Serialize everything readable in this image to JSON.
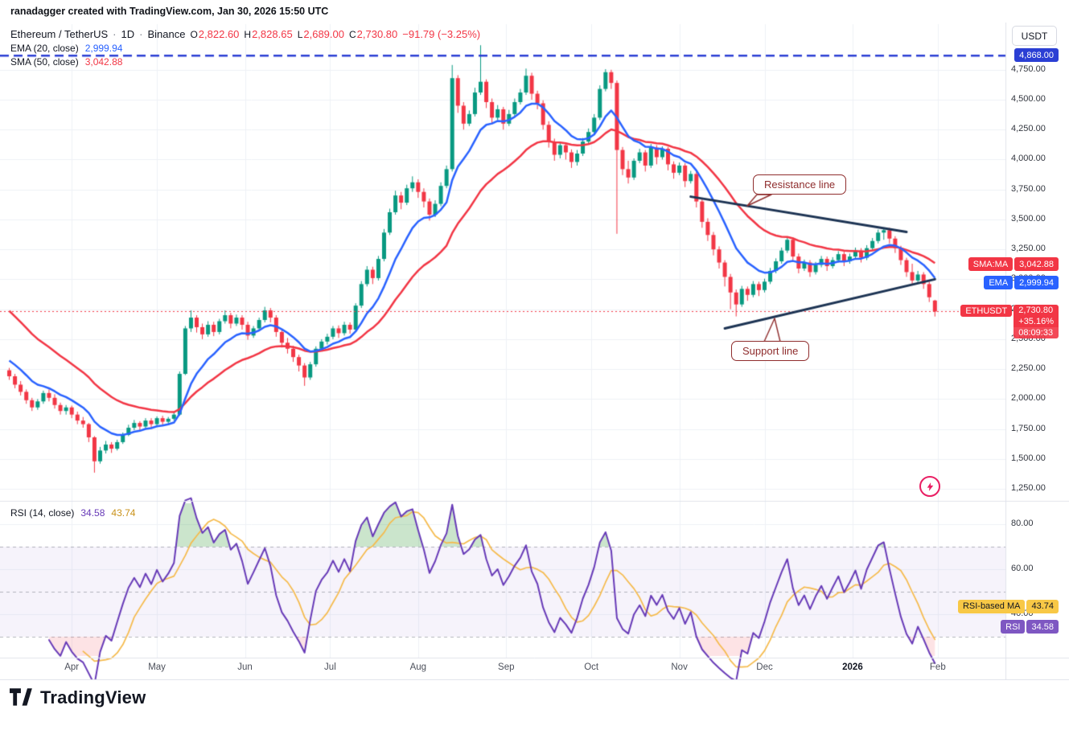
{
  "attribution": "ranadagger created with TradingView.com, Jan 30, 2026 15:50 UTC",
  "header": {
    "symbol": "Ethereum / TetherUS",
    "sep1": "·",
    "interval": "1D",
    "sep2": "·",
    "exchange": "Binance",
    "o_label": "O",
    "o": "2,822.60",
    "h_label": "H",
    "h": "2,828.65",
    "l_label": "L",
    "l": "2,689.00",
    "c_label": "C",
    "c": "2,730.80",
    "change": "−91.79 (−3.25%)"
  },
  "indicators": {
    "ema": {
      "label": "EMA (20, close)",
      "value": "2,999.94",
      "color": "#2962ff"
    },
    "sma": {
      "label": "SMA (50, close)",
      "value": "3,042.88",
      "color": "#f23645"
    }
  },
  "axis_button": {
    "label": "USDT"
  },
  "price_axis": {
    "ticks": [
      {
        "label": "4,750.00",
        "value": 4750
      },
      {
        "label": "4,500.00",
        "value": 4500
      },
      {
        "label": "4,250.00",
        "value": 4250
      },
      {
        "label": "4,000.00",
        "value": 4000
      },
      {
        "label": "3,750.00",
        "value": 3750
      },
      {
        "label": "3,500.00",
        "value": 3500
      },
      {
        "label": "3,250.00",
        "value": 3250
      },
      {
        "label": "3,000.00",
        "value": 3000
      },
      {
        "label": "2,750.00",
        "value": 2750
      },
      {
        "label": "2,500.00",
        "value": 2500
      },
      {
        "label": "2,250.00",
        "value": 2250
      },
      {
        "label": "2,000.00",
        "value": 2000
      },
      {
        "label": "1,750.00",
        "value": 1750
      },
      {
        "label": "1,500.00",
        "value": 1500
      },
      {
        "label": "1,250.00",
        "value": 1250
      }
    ]
  },
  "time_axis": {
    "ticks": [
      {
        "label": "Apr",
        "index": 11
      },
      {
        "label": "May",
        "index": 26
      },
      {
        "label": "Jun",
        "index": 41.5
      },
      {
        "label": "Jul",
        "index": 56.5
      },
      {
        "label": "Aug",
        "index": 72
      },
      {
        "label": "Sep",
        "index": 87.5
      },
      {
        "label": "Oct",
        "index": 102.5
      },
      {
        "label": "Nov",
        "index": 118
      },
      {
        "label": "Dec",
        "index": 133
      },
      {
        "label": "2026",
        "index": 148.5,
        "emphasis": true
      },
      {
        "label": "Feb",
        "index": 163.5
      }
    ]
  },
  "rsi_axis": {
    "ticks": [
      {
        "label": "80.00",
        "value": 80
      },
      {
        "label": "60.00",
        "value": 60
      },
      {
        "label": "40.00",
        "value": 40
      }
    ]
  },
  "badges": {
    "ath": {
      "label": "4,868.00",
      "value": 4868
    },
    "sma": {
      "tag": "SMA:MA",
      "label": "3,042.88",
      "value": 3042.88
    },
    "ema": {
      "tag": "EMA",
      "label": "2,999.94",
      "value": 2999.94
    },
    "last": {
      "tag": "ETHUSDT",
      "price": "2,730.80",
      "change_pct": "+35.16%",
      "countdown": "08:09:33",
      "value": 2730.8
    },
    "rsi_ma": {
      "tag": "RSI-based MA",
      "value_label": "43.74",
      "value": 43.74
    },
    "rsi": {
      "tag": "RSI",
      "value_label": "34.58",
      "value": 34.58
    }
  },
  "annotations": {
    "resistance": {
      "text": "Resistance line"
    },
    "support": {
      "text": "Support line"
    }
  },
  "rsi_legend": {
    "label": "RSI (14, close)",
    "rsi_value": "34.58",
    "ma_value": "43.74"
  },
  "footer": {
    "brand": "TradingView"
  },
  "colors": {
    "up": "#089981",
    "down": "#f23645",
    "ema": "#2962ff",
    "sma": "#f23645",
    "trend": "#1c3353",
    "grid": "#eef1f6",
    "separator": "#e0e3eb",
    "ath_line": "#2b3fd4",
    "last_line": "#f23645",
    "rsi": "#673ab7",
    "rsi_ma": "#f5ba4b",
    "callout": "#8f2d2d",
    "zap": "#e91e63"
  },
  "chart_data": {
    "type": "candlestick",
    "symbol": "ETHUSDT",
    "exchange": "Binance",
    "interval": "1D",
    "note": "each candle ≈ 2 trading days, Mar 2025 – Feb 2026; values read from chart",
    "price_range": [
      1250,
      4950
    ],
    "x_ticks": [
      "Apr",
      "May",
      "Jun",
      "Jul",
      "Aug",
      "Sep",
      "Oct",
      "Nov",
      "Dec",
      "2026",
      "Feb"
    ],
    "ohlc_last": {
      "open": 2822.6,
      "high": 2828.65,
      "low": 2689.0,
      "close": 2730.8,
      "change": -91.79,
      "change_pct": -3.25
    },
    "levels": {
      "all_time_high": 4868,
      "last_price": 2730.8
    },
    "indicators": {
      "ema_period": 20,
      "ema_last": 2999.94,
      "sma_period": 50,
      "sma_last": 3042.88
    },
    "drawings": {
      "resistance_line": {
        "from_index": 120,
        "from_price": 3690,
        "to_index": 158,
        "to_price": 3395
      },
      "support_line": {
        "from_index": 126,
        "from_price": 2590,
        "to_index": 163,
        "to_price": 3000
      }
    },
    "rsi": {
      "period": 14,
      "last": 34.58,
      "ma_last": 43.74,
      "band": [
        30,
        70
      ]
    },
    "candles": [
      [
        2240,
        2260,
        2160,
        2190
      ],
      [
        2190,
        2210,
        2090,
        2120
      ],
      [
        2120,
        2150,
        2030,
        2060
      ],
      [
        2060,
        2080,
        1960,
        1990
      ],
      [
        1990,
        2010,
        1900,
        1930
      ],
      [
        1930,
        2000,
        1910,
        1980
      ],
      [
        1980,
        2070,
        1960,
        2050
      ],
      [
        2050,
        2080,
        1980,
        2010
      ],
      [
        2010,
        2040,
        1920,
        1950
      ],
      [
        1950,
        1970,
        1870,
        1900
      ],
      [
        1900,
        1950,
        1870,
        1930
      ],
      [
        1930,
        1945,
        1840,
        1870
      ],
      [
        1870,
        1895,
        1790,
        1820
      ],
      [
        1820,
        1850,
        1760,
        1790
      ],
      [
        1790,
        1800,
        1640,
        1680
      ],
      [
        1680,
        1690,
        1385,
        1480
      ],
      [
        1480,
        1600,
        1460,
        1570
      ],
      [
        1570,
        1650,
        1545,
        1620
      ],
      [
        1620,
        1640,
        1550,
        1585
      ],
      [
        1585,
        1660,
        1570,
        1640
      ],
      [
        1640,
        1720,
        1625,
        1700
      ],
      [
        1700,
        1785,
        1690,
        1760
      ],
      [
        1760,
        1825,
        1740,
        1800
      ],
      [
        1800,
        1815,
        1735,
        1770
      ],
      [
        1770,
        1840,
        1755,
        1820
      ],
      [
        1820,
        1840,
        1755,
        1790
      ],
      [
        1790,
        1855,
        1775,
        1840
      ],
      [
        1840,
        1860,
        1780,
        1810
      ],
      [
        1810,
        1850,
        1790,
        1835
      ],
      [
        1835,
        1890,
        1820,
        1870
      ],
      [
        1870,
        2230,
        1860,
        2210
      ],
      [
        2210,
        2610,
        2200,
        2590
      ],
      [
        2590,
        2740,
        2560,
        2680
      ],
      [
        2680,
        2700,
        2555,
        2600
      ],
      [
        2600,
        2630,
        2500,
        2540
      ],
      [
        2540,
        2650,
        2520,
        2620
      ],
      [
        2620,
        2645,
        2525,
        2560
      ],
      [
        2560,
        2670,
        2540,
        2650
      ],
      [
        2650,
        2740,
        2630,
        2700
      ],
      [
        2700,
        2720,
        2590,
        2630
      ],
      [
        2630,
        2705,
        2610,
        2680
      ],
      [
        2680,
        2700,
        2580,
        2620
      ],
      [
        2620,
        2645,
        2495,
        2530
      ],
      [
        2530,
        2610,
        2510,
        2590
      ],
      [
        2590,
        2680,
        2570,
        2660
      ],
      [
        2660,
        2770,
        2640,
        2740
      ],
      [
        2740,
        2760,
        2640,
        2680
      ],
      [
        2680,
        2700,
        2520,
        2560
      ],
      [
        2560,
        2585,
        2430,
        2470
      ],
      [
        2470,
        2510,
        2380,
        2420
      ],
      [
        2420,
        2445,
        2310,
        2350
      ],
      [
        2350,
        2370,
        2230,
        2280
      ],
      [
        2280,
        2300,
        2110,
        2180
      ],
      [
        2180,
        2310,
        2160,
        2290
      ],
      [
        2290,
        2440,
        2270,
        2420
      ],
      [
        2420,
        2500,
        2400,
        2480
      ],
      [
        2480,
        2545,
        2455,
        2520
      ],
      [
        2520,
        2610,
        2500,
        2590
      ],
      [
        2590,
        2615,
        2510,
        2550
      ],
      [
        2550,
        2645,
        2530,
        2620
      ],
      [
        2620,
        2640,
        2545,
        2580
      ],
      [
        2580,
        2800,
        2565,
        2780
      ],
      [
        2780,
        2985,
        2760,
        2960
      ],
      [
        2960,
        3110,
        2940,
        3080
      ],
      [
        3080,
        3105,
        2960,
        3010
      ],
      [
        3010,
        3195,
        2990,
        3170
      ],
      [
        3170,
        3420,
        3150,
        3390
      ],
      [
        3390,
        3590,
        3370,
        3560
      ],
      [
        3560,
        3740,
        3540,
        3700
      ],
      [
        3700,
        3730,
        3585,
        3640
      ],
      [
        3640,
        3790,
        3620,
        3760
      ],
      [
        3760,
        3860,
        3730,
        3810
      ],
      [
        3810,
        3835,
        3680,
        3730
      ],
      [
        3730,
        3760,
        3600,
        3650
      ],
      [
        3650,
        3675,
        3490,
        3540
      ],
      [
        3540,
        3660,
        3520,
        3630
      ],
      [
        3630,
        3810,
        3610,
        3780
      ],
      [
        3780,
        3950,
        3760,
        3920
      ],
      [
        3920,
        4790,
        3900,
        4680
      ],
      [
        4680,
        4705,
        4390,
        4450
      ],
      [
        4450,
        4480,
        4250,
        4300
      ],
      [
        4300,
        4410,
        4280,
        4380
      ],
      [
        4380,
        4600,
        4360,
        4560
      ],
      [
        4560,
        4955,
        4540,
        4650
      ],
      [
        4650,
        4670,
        4430,
        4480
      ],
      [
        4480,
        4510,
        4300,
        4350
      ],
      [
        4350,
        4455,
        4330,
        4420
      ],
      [
        4420,
        4440,
        4250,
        4300
      ],
      [
        4300,
        4415,
        4280,
        4380
      ],
      [
        4380,
        4510,
        4360,
        4480
      ],
      [
        4480,
        4590,
        4460,
        4560
      ],
      [
        4560,
        4760,
        4540,
        4700
      ],
      [
        4700,
        4725,
        4500,
        4550
      ],
      [
        4550,
        4575,
        4420,
        4470
      ],
      [
        4470,
        4495,
        4250,
        4290
      ],
      [
        4290,
        4320,
        4100,
        4150
      ],
      [
        4150,
        4175,
        3990,
        4040
      ],
      [
        4040,
        4150,
        4010,
        4120
      ],
      [
        4120,
        4140,
        4000,
        4060
      ],
      [
        4060,
        4085,
        3930,
        3980
      ],
      [
        3980,
        4080,
        3950,
        4050
      ],
      [
        4050,
        4180,
        4030,
        4150
      ],
      [
        4150,
        4260,
        4130,
        4230
      ],
      [
        4230,
        4380,
        4210,
        4350
      ],
      [
        4350,
        4620,
        4330,
        4590
      ],
      [
        4590,
        4755,
        4570,
        4730
      ],
      [
        4730,
        4750,
        4590,
        4640
      ],
      [
        4640,
        4660,
        3380,
        4080
      ],
      [
        4080,
        4105,
        3870,
        3920
      ],
      [
        3920,
        3990,
        3800,
        3850
      ],
      [
        3850,
        4010,
        3830,
        3990
      ],
      [
        3990,
        4090,
        3970,
        4060
      ],
      [
        4060,
        4080,
        3900,
        3950
      ],
      [
        3950,
        4130,
        3930,
        4100
      ],
      [
        4100,
        4120,
        3960,
        4020
      ],
      [
        4020,
        4110,
        4000,
        4090
      ],
      [
        4090,
        4105,
        3910,
        3960
      ],
      [
        3960,
        3985,
        3840,
        3890
      ],
      [
        3890,
        3975,
        3870,
        3950
      ],
      [
        3950,
        3970,
        3770,
        3820
      ],
      [
        3820,
        3905,
        3800,
        3880
      ],
      [
        3880,
        3900,
        3600,
        3650
      ],
      [
        3650,
        3675,
        3430,
        3480
      ],
      [
        3480,
        3510,
        3320,
        3370
      ],
      [
        3370,
        3395,
        3200,
        3250
      ],
      [
        3250,
        3275,
        3090,
        3140
      ],
      [
        3140,
        3160,
        2940,
        3020
      ],
      [
        3020,
        3045,
        2750,
        2890
      ],
      [
        2890,
        2915,
        2690,
        2790
      ],
      [
        2790,
        2945,
        2770,
        2920
      ],
      [
        2920,
        2940,
        2820,
        2870
      ],
      [
        2870,
        2985,
        2850,
        2960
      ],
      [
        2960,
        2980,
        2860,
        2910
      ],
      [
        2910,
        3005,
        2890,
        2980
      ],
      [
        2980,
        3095,
        2960,
        3070
      ],
      [
        3070,
        3175,
        3050,
        3150
      ],
      [
        3150,
        3265,
        3130,
        3240
      ],
      [
        3240,
        3355,
        3220,
        3330
      ],
      [
        3330,
        3350,
        3150,
        3190
      ],
      [
        3190,
        3215,
        3050,
        3090
      ],
      [
        3090,
        3165,
        3070,
        3140
      ],
      [
        3140,
        3160,
        3020,
        3060
      ],
      [
        3060,
        3145,
        3040,
        3120
      ],
      [
        3120,
        3195,
        3100,
        3170
      ],
      [
        3170,
        3190,
        3070,
        3110
      ],
      [
        3110,
        3185,
        3090,
        3160
      ],
      [
        3160,
        3235,
        3140,
        3210
      ],
      [
        3210,
        3230,
        3110,
        3150
      ],
      [
        3150,
        3215,
        3130,
        3190
      ],
      [
        3190,
        3265,
        3170,
        3240
      ],
      [
        3240,
        3260,
        3140,
        3180
      ],
      [
        3180,
        3285,
        3160,
        3260
      ],
      [
        3260,
        3345,
        3240,
        3320
      ],
      [
        3320,
        3415,
        3300,
        3390
      ],
      [
        3390,
        3430,
        3330,
        3410
      ],
      [
        3410,
        3430,
        3300,
        3340
      ],
      [
        3340,
        3360,
        3220,
        3260
      ],
      [
        3260,
        3280,
        3120,
        3160
      ],
      [
        3160,
        3180,
        3020,
        3060
      ],
      [
        3060,
        3130,
        2960,
        2990
      ],
      [
        2990,
        3070,
        2970,
        3040
      ],
      [
        3040,
        3060,
        2920,
        2960
      ],
      [
        2960,
        2980,
        2810,
        2850
      ],
      [
        2822.6,
        2828.65,
        2689,
        2730.8
      ]
    ]
  }
}
